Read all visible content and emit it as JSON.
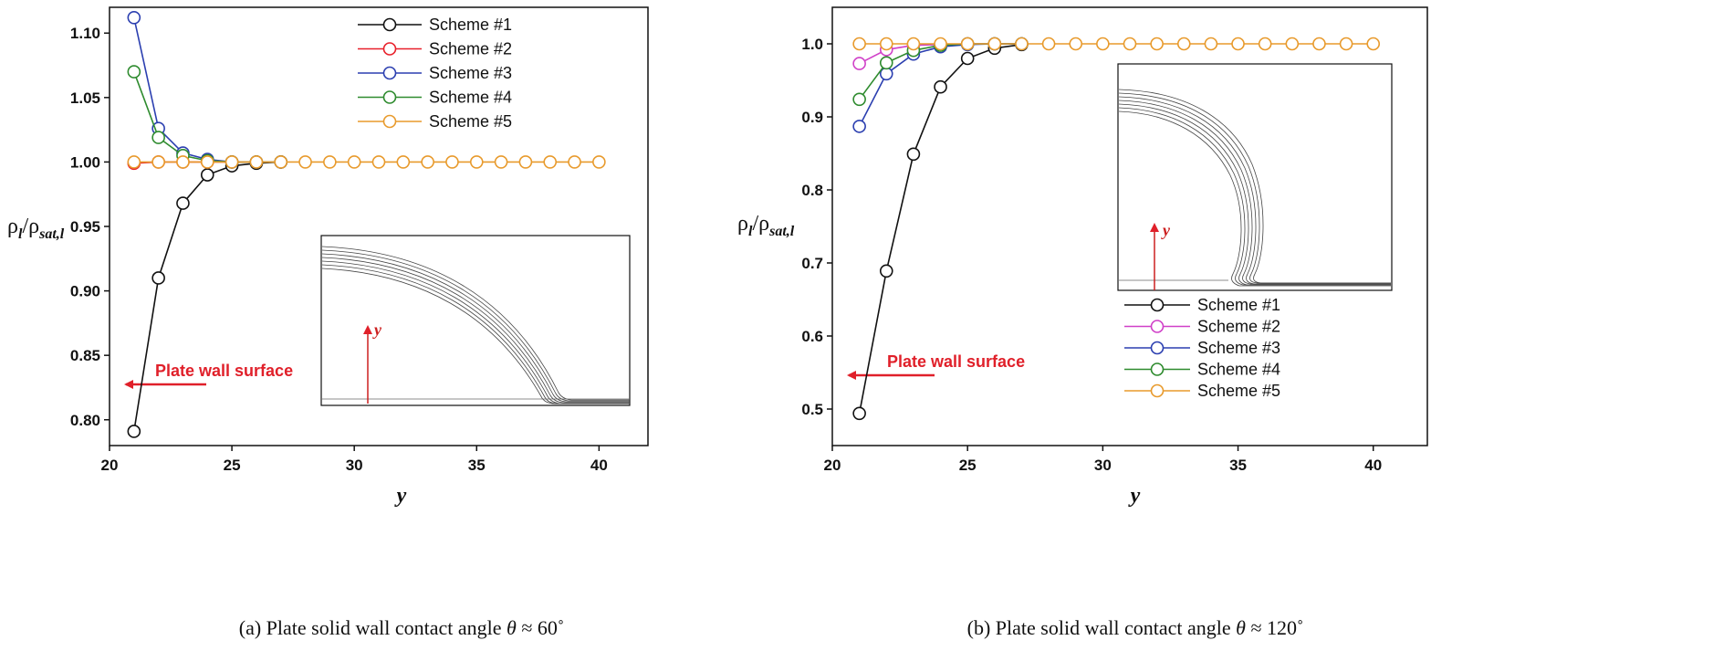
{
  "chart_data": [
    {
      "type": "line",
      "panel": "a",
      "caption_prefix": "(a) Plate solid wall contact angle",
      "caption_theta": "θ",
      "caption_value": "≈ 60˚",
      "xlabel": "y",
      "ylabel_main": "ρ",
      "ylabel_sub1": "l",
      "ylabel_slash": "/ρ",
      "ylabel_sub2": "sat,l",
      "xlim": [
        20,
        42
      ],
      "ylim": [
        0.78,
        1.12
      ],
      "xticks": [
        20,
        25,
        30,
        35,
        40
      ],
      "xtick_labels": [
        "20",
        "25",
        "30",
        "35",
        "40"
      ],
      "yticks": [
        0.8,
        0.85,
        0.9,
        0.95,
        1.0,
        1.05,
        1.1
      ],
      "ytick_labels": [
        "0.80",
        "0.85",
        "0.90",
        "0.95",
        "1.00",
        "1.05",
        "1.10"
      ],
      "legend_position": "top-center",
      "annotation": "Plate wall surface",
      "inset_axis_label": "y",
      "series": [
        {
          "name": "Scheme #1",
          "color": "#111111",
          "x": [
            21,
            22,
            23,
            24,
            25,
            26,
            27
          ],
          "y": [
            0.791,
            0.91,
            0.968,
            0.99,
            0.997,
            0.999,
            1.0
          ]
        },
        {
          "name": "Scheme #2",
          "color": "#e8202a",
          "x": [
            21,
            22,
            23,
            24,
            25,
            26,
            27
          ],
          "y": [
            0.999,
            1.0,
            1.0,
            1.0,
            1.0,
            1.0,
            1.0
          ]
        },
        {
          "name": "Scheme #3",
          "color": "#2b3fb0",
          "x": [
            21,
            22,
            23,
            24,
            25,
            26,
            27
          ],
          "y": [
            1.112,
            1.026,
            1.007,
            1.002,
            1.0,
            1.0,
            1.0
          ]
        },
        {
          "name": "Scheme #4",
          "color": "#2e8b2e",
          "x": [
            21,
            22,
            23,
            24,
            25,
            26,
            27
          ],
          "y": [
            1.07,
            1.019,
            1.005,
            1.001,
            1.0,
            1.0,
            1.0
          ]
        },
        {
          "name": "Scheme #5",
          "color": "#e89a2c",
          "x": [
            21,
            22,
            23,
            24,
            25,
            26,
            27,
            28,
            29,
            30,
            31,
            32,
            33,
            34,
            35,
            36,
            37,
            38,
            39,
            40
          ],
          "y": [
            1.0,
            1.0,
            1.0,
            1.0,
            1.0,
            1.0,
            1.0,
            1.0,
            1.0,
            1.0,
            1.0,
            1.0,
            1.0,
            1.0,
            1.0,
            1.0,
            1.0,
            1.0,
            1.0,
            1.0
          ]
        }
      ]
    },
    {
      "type": "line",
      "panel": "b",
      "caption_prefix": "(b) Plate solid wall contact angle",
      "caption_theta": "θ",
      "caption_value": "≈ 120˚",
      "xlabel": "y",
      "ylabel_main": "ρ",
      "ylabel_sub1": "l",
      "ylabel_slash": "/ρ",
      "ylabel_sub2": "sat,l",
      "xlim": [
        20,
        42
      ],
      "ylim": [
        0.45,
        1.05
      ],
      "xticks": [
        20,
        25,
        30,
        35,
        40
      ],
      "xtick_labels": [
        "20",
        "25",
        "30",
        "35",
        "40"
      ],
      "yticks": [
        0.5,
        0.6,
        0.7,
        0.8,
        0.9,
        1.0
      ],
      "ytick_labels": [
        "0.5",
        "0.6",
        "0.7",
        "0.8",
        "0.9",
        "1.0"
      ],
      "legend_position": "bottom-right",
      "annotation": "Plate wall surface",
      "inset_axis_label": "y",
      "series": [
        {
          "name": "Scheme #1",
          "color": "#111111",
          "x": [
            21,
            22,
            23,
            24,
            25,
            26,
            27
          ],
          "y": [
            0.494,
            0.689,
            0.849,
            0.941,
            0.98,
            0.994,
            0.999
          ]
        },
        {
          "name": "Scheme #2",
          "color": "#d040c8",
          "x": [
            21,
            22,
            23,
            24,
            25,
            26,
            27
          ],
          "y": [
            0.973,
            0.992,
            0.998,
            0.999,
            1.0,
            1.0,
            1.0
          ]
        },
        {
          "name": "Scheme #3",
          "color": "#2b3fb0",
          "x": [
            21,
            22,
            23,
            24,
            25,
            26,
            27
          ],
          "y": [
            0.887,
            0.959,
            0.986,
            0.996,
            0.999,
            1.0,
            1.0
          ]
        },
        {
          "name": "Scheme #4",
          "color": "#2e8b2e",
          "x": [
            21,
            22,
            23,
            24,
            25,
            26,
            27
          ],
          "y": [
            0.924,
            0.974,
            0.991,
            0.998,
            1.0,
            1.0,
            1.0
          ]
        },
        {
          "name": "Scheme #5",
          "color": "#e89a2c",
          "x": [
            21,
            22,
            23,
            24,
            25,
            26,
            27,
            28,
            29,
            30,
            31,
            32,
            33,
            34,
            35,
            36,
            37,
            38,
            39,
            40
          ],
          "y": [
            1.0,
            1.0,
            1.0,
            1.0,
            1.0,
            1.0,
            1.0,
            1.0,
            1.0,
            1.0,
            1.0,
            1.0,
            1.0,
            1.0,
            1.0,
            1.0,
            1.0,
            1.0,
            1.0,
            1.0
          ]
        }
      ]
    }
  ],
  "colors": {
    "annotation": "#e0202a",
    "axis": "#111111"
  }
}
